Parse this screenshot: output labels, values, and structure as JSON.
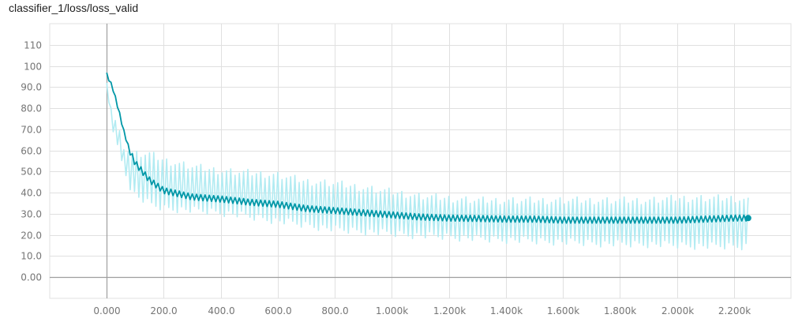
{
  "chart_data": {
    "type": "line",
    "title": "classifier_1/loss/loss_valid",
    "xlabel": "",
    "ylabel": "",
    "xlim": [
      -200,
      2400
    ],
    "ylim": [
      -10,
      120
    ],
    "grid": true,
    "x_ticks": [
      0,
      200,
      400,
      600,
      800,
      1000,
      1200,
      1400,
      1600,
      1800,
      2000,
      2200
    ],
    "x_tick_labels": [
      "0.000",
      "200.0",
      "400.0",
      "600.0",
      "800.0",
      "1.000k",
      "1.200k",
      "1.400k",
      "1.600k",
      "1.800k",
      "2.000k",
      "2.200k"
    ],
    "y_ticks": [
      0,
      10,
      20,
      30,
      40,
      50,
      60,
      70,
      80,
      90,
      100,
      110
    ],
    "y_tick_labels": [
      "0.00",
      "10.0",
      "20.0",
      "30.0",
      "40.0",
      "50.0",
      "60.0",
      "70.0",
      "80.0",
      "90.0",
      "100",
      "110"
    ],
    "colors": {
      "smoothed": "#0097a7",
      "raw": "#b2ebf2",
      "grid": "#e0e0e0",
      "axis": "#9e9e9e"
    },
    "series": [
      {
        "role": "smoothed",
        "x": [
          0,
          20,
          40,
          60,
          80,
          100,
          150,
          200,
          300,
          400,
          500,
          600,
          700,
          800,
          900,
          1000,
          1100,
          1200,
          1300,
          1400,
          1500,
          1600,
          1700,
          1800,
          1900,
          2000,
          2100,
          2200,
          2250
        ],
        "y": [
          96,
          90,
          80,
          69,
          60,
          54,
          46,
          41,
          38,
          37,
          35.5,
          34.5,
          32.5,
          31.5,
          30.5,
          29.5,
          28.5,
          28,
          27.8,
          27.5,
          27.5,
          27,
          27,
          27,
          27,
          27,
          27.5,
          28,
          28
        ]
      },
      {
        "role": "raw_high",
        "x": [
          0,
          20,
          40,
          60,
          80,
          100,
          150,
          200,
          300,
          400,
          500,
          600,
          700,
          800,
          900,
          1000,
          1100,
          1200,
          1300,
          1400,
          1500,
          1600,
          1700,
          1800,
          1900,
          2000,
          2100,
          2200,
          2250
        ],
        "y": [
          92,
          80,
          72,
          64,
          61,
          60,
          60,
          57,
          54,
          52,
          51,
          50,
          47,
          46,
          44,
          42,
          40,
          39,
          38,
          38,
          38,
          38,
          38,
          38,
          38,
          39,
          39,
          39,
          38
        ]
      },
      {
        "role": "raw_low",
        "x": [
          0,
          20,
          40,
          60,
          80,
          100,
          150,
          200,
          300,
          400,
          500,
          600,
          700,
          800,
          900,
          1000,
          1100,
          1200,
          1300,
          1400,
          1500,
          1600,
          1700,
          1800,
          1900,
          2000,
          2100,
          2200,
          2250
        ],
        "y": [
          88,
          70,
          58,
          50,
          42,
          37,
          33,
          31,
          30,
          29,
          27,
          25,
          23,
          21,
          20,
          19,
          18,
          17.5,
          16.5,
          16,
          15.5,
          15,
          14.5,
          14,
          14,
          13.5,
          13,
          13,
          13
        ]
      }
    ],
    "last_point": {
      "x": 2250,
      "y": 28
    }
  }
}
